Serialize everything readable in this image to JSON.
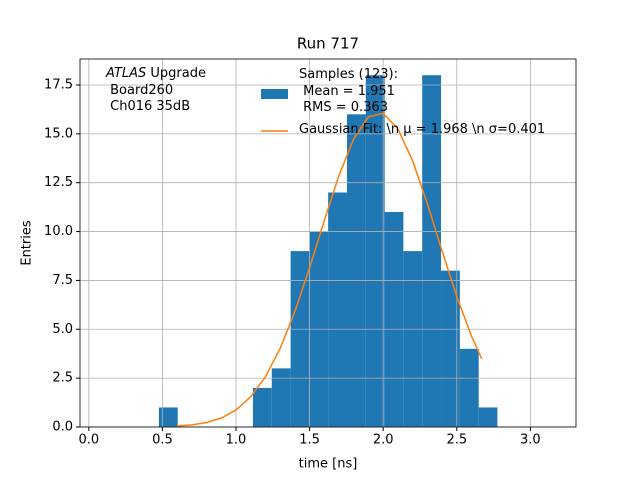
{
  "chart_data": {
    "type": "histogram",
    "title": "Run 717",
    "xlabel": "time [ns]",
    "ylabel": "Entries",
    "annotation": {
      "italic": "ATLAS",
      "text": " Upgrade\n Board260\n Ch016 35dB"
    },
    "bins": [
      0.476,
      0.604,
      0.732,
      0.859,
      0.987,
      1.115,
      1.243,
      1.371,
      1.498,
      1.626,
      1.754,
      1.882,
      2.01,
      2.137,
      2.265,
      2.393,
      2.521,
      2.649,
      2.776
    ],
    "series": [
      {
        "name": "Samples (123):\n Mean = 1.951\n RMS = 0.363",
        "color": "#1f77b4",
        "values": [
          1,
          0,
          0,
          0,
          0,
          2,
          3,
          9,
          10,
          12,
          16,
          18,
          11,
          9,
          18,
          8,
          4,
          1
        ]
      },
      {
        "name": "Gaussian Fit: \\n μ = 1.968 \\n σ=0.401",
        "type": "line",
        "color": "#ff7f0e",
        "x": [
          0.6,
          0.7,
          0.8,
          0.9,
          1.0,
          1.1,
          1.2,
          1.3,
          1.4,
          1.5,
          1.6,
          1.7,
          1.8,
          1.9,
          2.0,
          2.1,
          2.2,
          2.3,
          2.4,
          2.5,
          2.6,
          2.67
        ],
        "values": [
          0.05,
          0.11,
          0.23,
          0.46,
          0.87,
          1.55,
          2.57,
          4.02,
          5.91,
          8.15,
          10.57,
          12.88,
          14.75,
          15.87,
          16.05,
          15.25,
          13.62,
          11.43,
          9.01,
          6.68,
          4.65,
          3.48
        ]
      }
    ],
    "xlim": [
      -0.06,
      3.31
    ],
    "ylim": [
      0,
      18.83
    ],
    "xticks": [
      {
        "value": 0,
        "label": "0.0"
      },
      0.5,
      {
        "value": 1,
        "label": "1.0"
      },
      1.5,
      {
        "value": 2,
        "label": "2.0"
      },
      2.5,
      {
        "value": 3,
        "label": "3.0"
      }
    ],
    "yticks": [
      {
        "value": 0,
        "label": "0.0"
      },
      2.5,
      {
        "value": 5,
        "label": "5.0"
      },
      7.5,
      {
        "value": 10,
        "label": "10.0"
      },
      12.5,
      {
        "value": 15,
        "label": "15.0"
      },
      17.5
    ],
    "grid": true,
    "legend": "upper right"
  }
}
